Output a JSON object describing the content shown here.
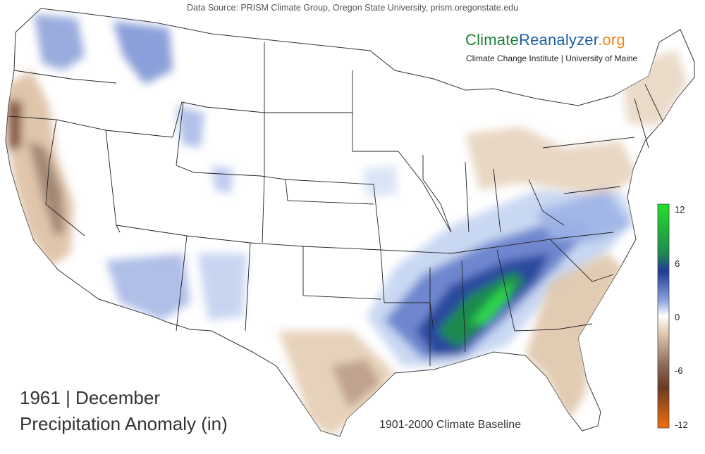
{
  "header": {
    "source_text": "Data Source: PRISM Climate Group, Oregon State University, prism.oregonstate.edu"
  },
  "brand": {
    "part1": "Climate",
    "part2": "Reanalyzer",
    "part3": ".org",
    "subtitle": "Climate Change Institute | University of Maine",
    "colors": {
      "part1": "#1d7f3a",
      "part2": "#1b5ea6",
      "part3": "#e8891a"
    }
  },
  "map": {
    "year_line": "1961 | December",
    "title": "Precipitation Anomaly (in)",
    "baseline": "1901-2000 Climate Baseline"
  },
  "colorbar": {
    "ticks": [
      "12",
      "6",
      "0",
      "-6",
      "-12"
    ],
    "min": -12,
    "max": 12,
    "colors": {
      "wettest": "#22e02a",
      "wet_green": "#1f8a4e",
      "wet_blue": "#1f3a95",
      "light_blue": "#c9daf2",
      "neutral": "#ffffff",
      "light_tan": "#ead3b8",
      "brown": "#8a6a58",
      "dark_brown": "#6b3a1f",
      "driest": "#f26d0e"
    }
  },
  "legend": {
    "unit": "in"
  }
}
